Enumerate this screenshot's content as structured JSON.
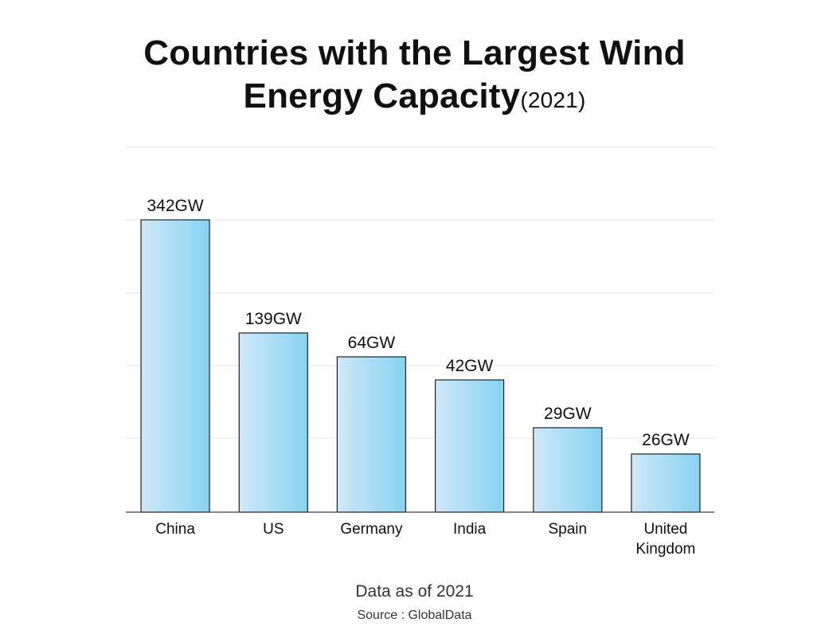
{
  "chart_data": {
    "type": "bar",
    "title_line1": "Countries with the Largest Wind",
    "title_line2": "Energy Capacity",
    "title_suffix": "(2021)",
    "categories": [
      "China",
      "US",
      "Germany",
      "India",
      "Spain",
      "United Kingdom"
    ],
    "values": [
      342,
      139,
      64,
      42,
      29,
      26
    ],
    "value_labels": [
      "342GW",
      "139GW",
      "64GW",
      "42GW",
      "29GW",
      "26GW"
    ],
    "bar_color_start": "#d0e8f7",
    "bar_color_end": "#86d3f2",
    "grid": true,
    "legend": "none"
  },
  "footer": {
    "note": "Data as of 2021",
    "source": "Source : GlobalData"
  }
}
